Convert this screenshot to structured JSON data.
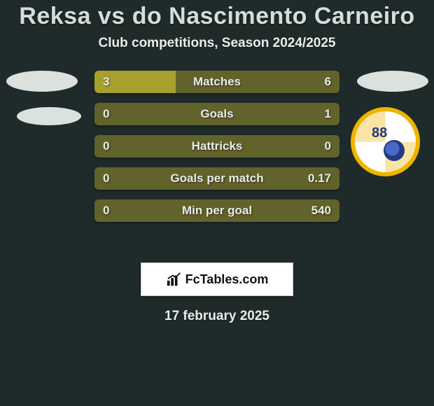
{
  "header": {
    "title": "Reksa vs do Nascimento Carneiro",
    "subtitle": "Club competitions, Season 2024/2025"
  },
  "club_badge": {
    "text": "88"
  },
  "bars": [
    {
      "label": "Matches",
      "left": "3",
      "right": "6",
      "left_pct": 33,
      "right_pct": 0
    },
    {
      "label": "Goals",
      "left": "0",
      "right": "1",
      "left_pct": 0,
      "right_pct": 0
    },
    {
      "label": "Hattricks",
      "left": "0",
      "right": "0",
      "left_pct": 0,
      "right_pct": 0
    },
    {
      "label": "Goals per match",
      "left": "0",
      "right": "0.17",
      "left_pct": 0,
      "right_pct": 0
    },
    {
      "label": "Min per goal",
      "left": "0",
      "right": "540",
      "left_pct": 0,
      "right_pct": 0
    }
  ],
  "brand": {
    "text": "FcTables.com"
  },
  "date": "17 february 2025",
  "colors": {
    "bg": "#1f2b2a",
    "bar_bg": "#62632b",
    "bar_fill": "#a8a02e",
    "text": "#e9ecea",
    "badge_ring": "#f0b400"
  }
}
